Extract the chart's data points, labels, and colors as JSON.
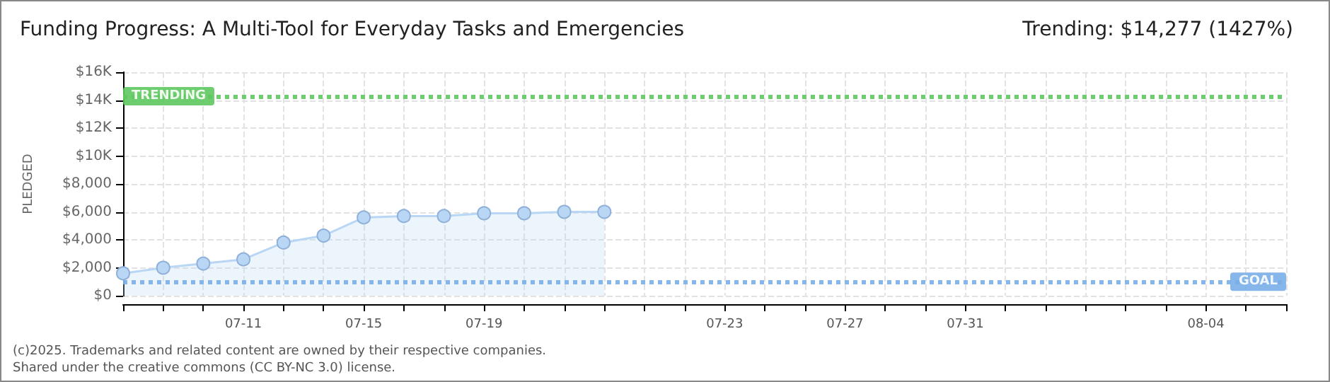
{
  "chart_data": {
    "type": "area",
    "title": "Funding Progress: A Multi-Tool for Everyday Tasks and Emergencies",
    "subtitle": "Trending: $14,277 (1427%)",
    "ylabel": "PLEDGED",
    "categories": [
      null,
      null,
      null,
      "07-11",
      null,
      null,
      "07-15",
      null,
      null,
      "07-19",
      null,
      null,
      null,
      null,
      null,
      "07-23",
      null,
      null,
      "07-27",
      null,
      null,
      "07-31",
      null,
      null,
      null,
      null,
      null,
      "08-04",
      null,
      null
    ],
    "series": [
      {
        "color": "#b9d7f5",
        "values": [
          1600,
          2000,
          2300,
          2600,
          3800,
          4300,
          5600,
          5700,
          5700,
          5900,
          5900,
          6000,
          6000,
          null,
          null,
          null,
          null,
          null,
          null,
          null,
          null,
          null,
          null,
          null,
          null,
          null,
          null,
          null,
          null,
          null
        ]
      }
    ],
    "ylim": [
      0,
      16000
    ],
    "yticks": [
      {
        "value": 0,
        "label": "$0"
      },
      {
        "value": 2000,
        "label": "$2,000"
      },
      {
        "value": 4000,
        "label": "$4,000"
      },
      {
        "value": 6000,
        "label": "$6,000"
      },
      {
        "value": 8000,
        "label": "$8,000"
      },
      {
        "value": 10000,
        "label": "$10K"
      },
      {
        "value": 12000,
        "label": "$12K"
      },
      {
        "value": 14000,
        "label": "$14K"
      },
      {
        "value": 16000,
        "label": "$16K"
      }
    ],
    "ref_lines": [
      {
        "axis": "y",
        "value": 14277,
        "label": "TRENDING",
        "color": "#5ec85e",
        "line_style": "dotted"
      },
      {
        "axis": "y",
        "value": 1000,
        "label": "GOAL",
        "color": "#7aaee8",
        "line_style": "dotted"
      }
    ],
    "grid": true,
    "marker": "circle",
    "line_style": "solid",
    "annotations": [
      "(c)2025. Trademarks and related content are owned by their respective companies.",
      "Shared under the creative commons (CC BY-NC 3.0) license."
    ]
  }
}
